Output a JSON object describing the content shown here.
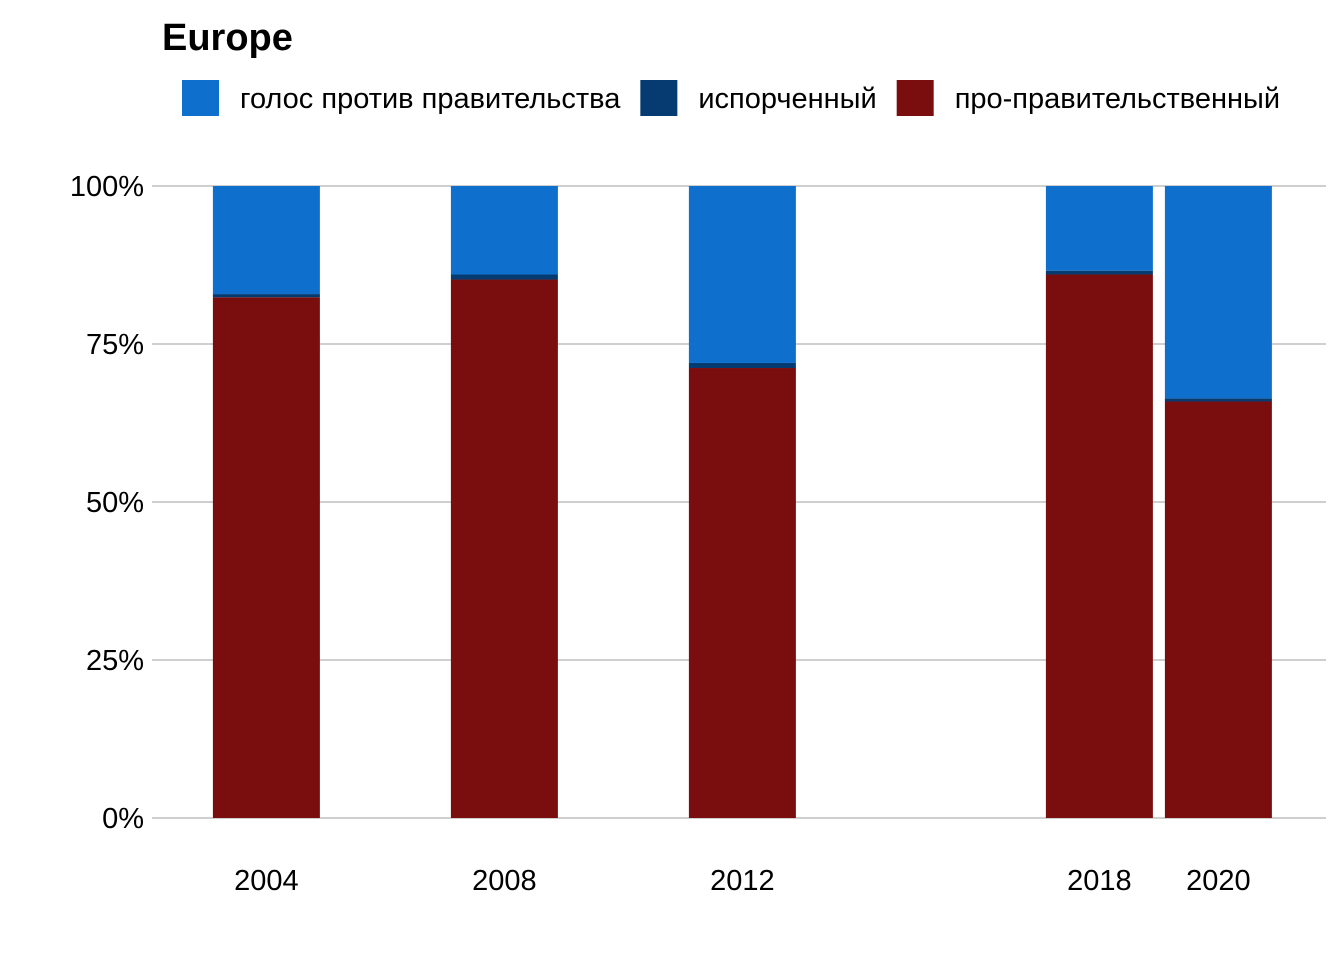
{
  "chart_data": {
    "type": "bar",
    "stacked": true,
    "title": "Europe",
    "xlabel": "",
    "ylabel": "",
    "categories": [
      "2004",
      "2008",
      "2012",
      "2018",
      "2020"
    ],
    "x": [
      2004,
      2008,
      2012,
      2018,
      2020
    ],
    "series": [
      {
        "name": "про-правительственный",
        "values": [
          82.4,
          85.2,
          71.2,
          86.0,
          65.9
        ],
        "color": "#7a0e0e"
      },
      {
        "name": "испорченный",
        "values": [
          0.5,
          0.8,
          0.8,
          0.6,
          0.5
        ],
        "color": "#053b70"
      },
      {
        "name": "голос против правительства",
        "values": [
          17.1,
          14.0,
          28.0,
          13.4,
          33.6
        ],
        "color": "#0e6fcd"
      }
    ],
    "legend": {
      "placement": "top-left",
      "order": [
        "голос против правительства",
        "испорченный",
        "про-правительственный"
      ]
    },
    "ylim": [
      0,
      100
    ],
    "yticks": [
      0,
      25,
      50,
      75,
      100
    ],
    "ytick_labels": [
      "0%",
      "25%",
      "50%",
      "75%",
      "100%"
    ],
    "grid": true
  }
}
